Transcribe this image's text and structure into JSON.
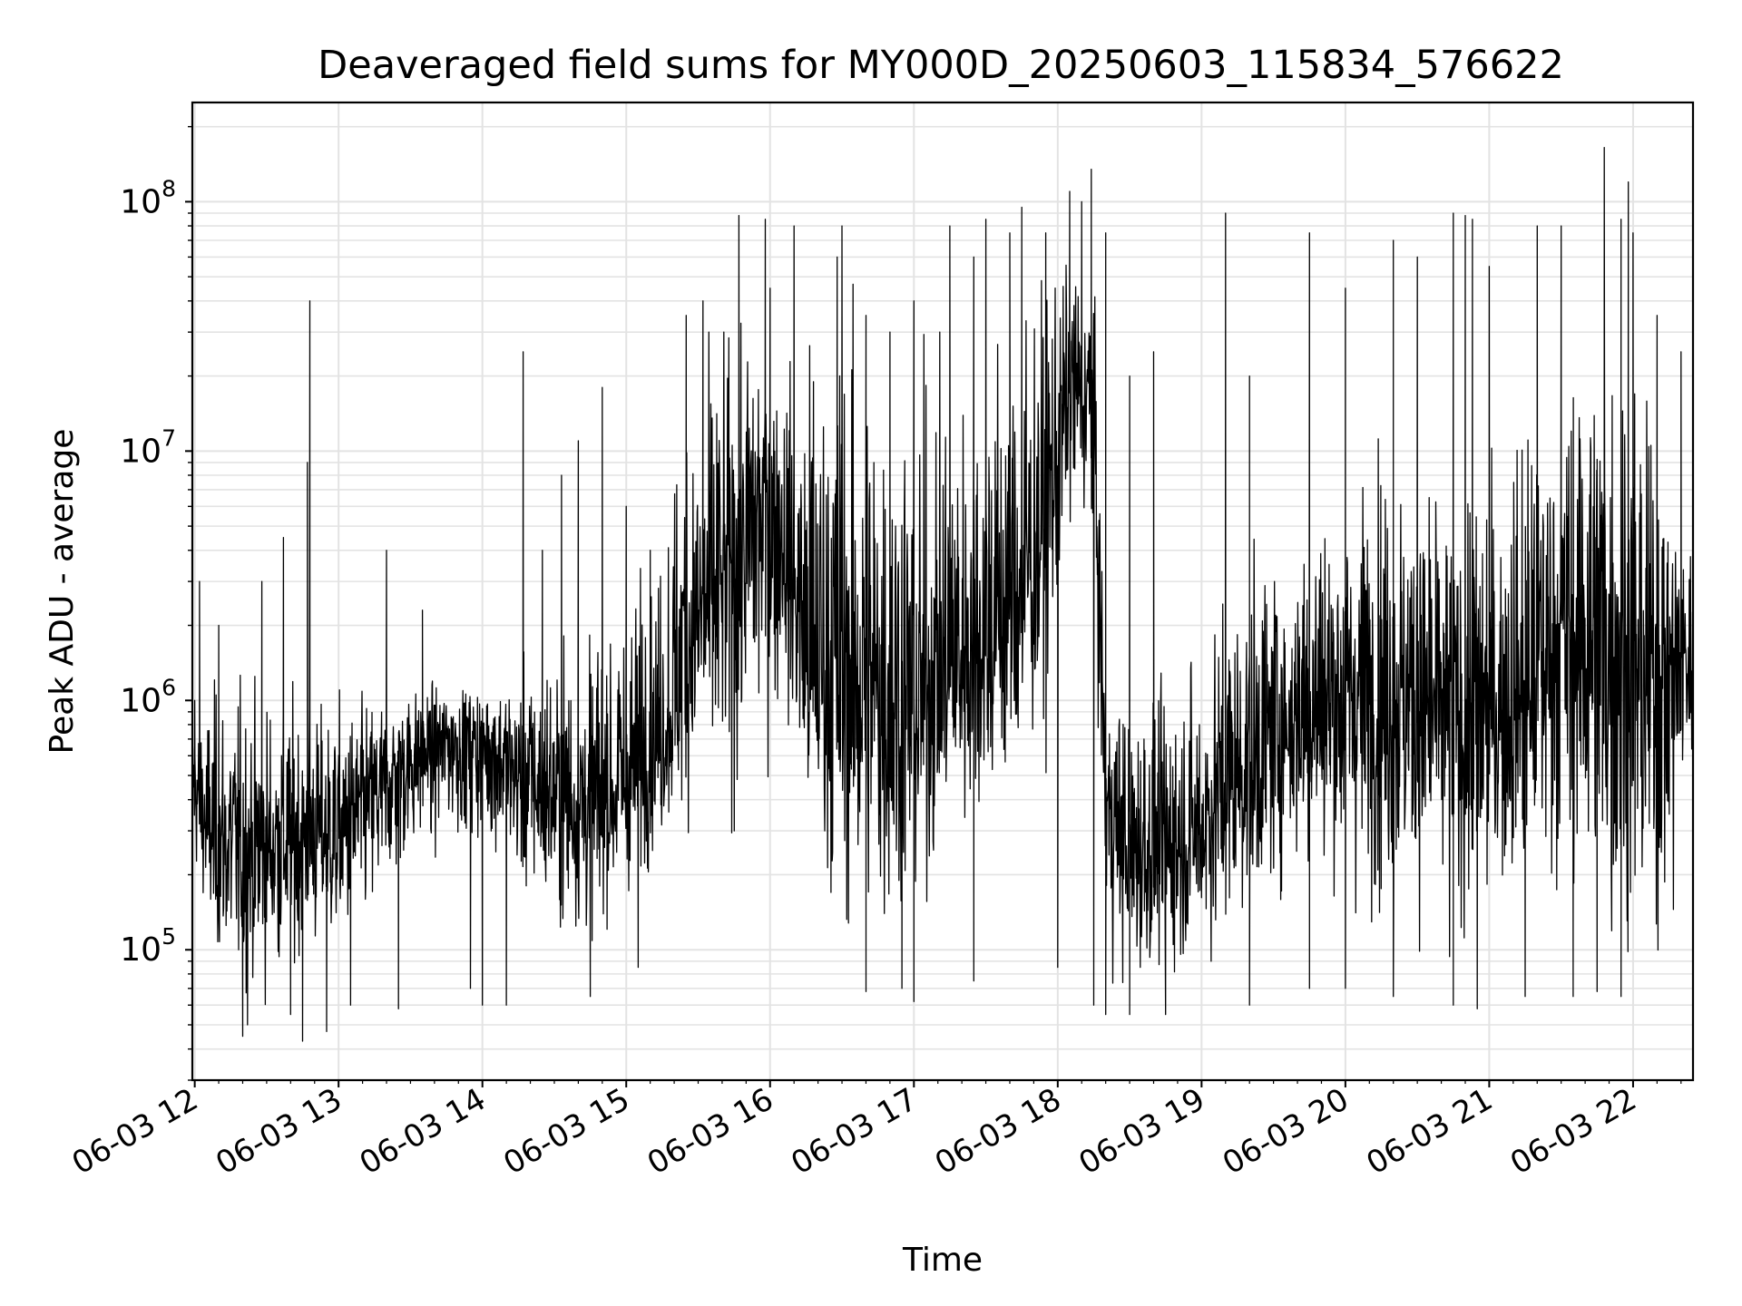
{
  "chart_data": {
    "type": "line",
    "title": "Deaveraged field sums for MY000D_20250603_115834_576622",
    "xlabel": "Time",
    "ylabel": "Peak ADU - average",
    "yscale": "log",
    "xlim": [
      "2025-06-03 11:59",
      "2025-06-03 22:25"
    ],
    "ylim": [
      30000,
      250000000
    ],
    "grid": true,
    "line_color": "#000000",
    "x_ticks": [
      "06-03 12",
      "06-03 13",
      "06-03 14",
      "06-03 15",
      "06-03 16",
      "06-03 17",
      "06-03 18",
      "06-03 19",
      "06-03 20",
      "06-03 21",
      "06-03 22"
    ],
    "y_ticks": [
      {
        "base": "10",
        "exp": "5"
      },
      {
        "base": "10",
        "exp": "6"
      },
      {
        "base": "10",
        "exp": "7"
      },
      {
        "base": "10",
        "exp": "8"
      }
    ],
    "series": [
      {
        "x": [
          "2025-06-03 11:59",
          "2025-06-03 12:00",
          "2025-06-03 12:05",
          "2025-06-03 12:10",
          "2025-06-03 12:20",
          "2025-06-03 12:30",
          "2025-06-03 12:40",
          "2025-06-03 12:50",
          "2025-06-03 13:00",
          "2025-06-03 13:15",
          "2025-06-03 13:30",
          "2025-06-03 13:45",
          "2025-06-03 14:00",
          "2025-06-03 14:15",
          "2025-06-03 14:30",
          "2025-06-03 14:45",
          "2025-06-03 15:00",
          "2025-06-03 15:15",
          "2025-06-03 15:25",
          "2025-06-03 15:35",
          "2025-06-03 15:45",
          "2025-06-03 15:55",
          "2025-06-03 16:05",
          "2025-06-03 16:15",
          "2025-06-03 16:30",
          "2025-06-03 16:45",
          "2025-06-03 17:00",
          "2025-06-03 17:15",
          "2025-06-03 17:30",
          "2025-06-03 17:45",
          "2025-06-03 17:55",
          "2025-06-03 18:05",
          "2025-06-03 18:15",
          "2025-06-03 18:20",
          "2025-06-03 18:30",
          "2025-06-03 18:45",
          "2025-06-03 19:00",
          "2025-06-03 19:15",
          "2025-06-03 19:30",
          "2025-06-03 19:45",
          "2025-06-03 20:00",
          "2025-06-03 20:15",
          "2025-06-03 20:30",
          "2025-06-03 20:45",
          "2025-06-03 21:00",
          "2025-06-03 21:15",
          "2025-06-03 21:30",
          "2025-06-03 21:45",
          "2025-06-03 22:00",
          "2025-06-03 22:15",
          "2025-06-03 22:25"
        ],
        "median": [
          500000,
          450000,
          300000,
          250000,
          250000,
          260000,
          280000,
          300000,
          300000,
          400000,
          600000,
          700000,
          700000,
          500000,
          400000,
          350000,
          450000,
          700000,
          1500000,
          2500000,
          3500000,
          6000000,
          5000000,
          1500000,
          1200000,
          1000000,
          800000,
          1300000,
          1800000,
          3000000,
          6000000,
          20000000,
          15000000,
          400000,
          250000,
          250000,
          300000,
          500000,
          700000,
          900000,
          1000000,
          1100000,
          1000000,
          800000,
          900000,
          1200000,
          1800000,
          2000000,
          1200000,
          1300000,
          1500000
        ],
        "low": [
          300000,
          200000,
          120000,
          80000,
          60000,
          60000,
          70000,
          80000,
          80000,
          120000,
          200000,
          250000,
          250000,
          150000,
          120000,
          100000,
          150000,
          250000,
          300000,
          250000,
          300000,
          300000,
          1000000,
          200000,
          100000,
          80000,
          120000,
          250000,
          250000,
          300000,
          500000,
          4000000,
          3000000,
          80000,
          60000,
          70000,
          80000,
          100000,
          150000,
          200000,
          150000,
          120000,
          100000,
          80000,
          100000,
          120000,
          150000,
          80000,
          70000,
          80000,
          400000
        ],
        "high": [
          1000000,
          900000,
          1200000,
          1400000,
          1300000,
          1200000,
          1200000,
          1100000,
          1100000,
          1200000,
          1200000,
          1200000,
          1200000,
          1500000,
          2000000,
          2500000,
          3500000,
          5000000,
          30000000,
          30000000,
          30000000,
          40000000,
          20000000,
          50000000,
          50000000,
          40000000,
          30000000,
          30000000,
          40000000,
          45000000,
          50000000,
          60000000,
          60000000,
          1200000,
          1300000,
          1300000,
          2000000,
          4000000,
          5000000,
          8000000,
          10000000,
          12000000,
          10000000,
          8000000,
          10000000,
          15000000,
          25000000,
          40000000,
          30000000,
          10000000,
          5000000
        ],
        "spikes": [
          [
            "2025-06-03 12:00",
            1000000
          ],
          [
            "2025-06-03 12:02",
            3000000
          ],
          [
            "2025-06-03 12:10",
            2000000
          ],
          [
            "2025-06-03 12:28",
            3000000
          ],
          [
            "2025-06-03 12:37",
            4500000
          ],
          [
            "2025-06-03 12:47",
            9000000
          ],
          [
            "2025-06-03 12:48",
            40000000
          ],
          [
            "2025-06-03 13:20",
            4000000
          ],
          [
            "2025-06-03 13:35",
            2300000
          ],
          [
            "2025-06-03 14:17",
            25000000
          ],
          [
            "2025-06-03 14:25",
            4000000
          ],
          [
            "2025-06-03 14:33",
            8000000
          ],
          [
            "2025-06-03 14:40",
            11000000
          ],
          [
            "2025-06-03 14:50",
            18000000
          ],
          [
            "2025-06-03 15:00",
            6000000
          ],
          [
            "2025-06-03 15:10",
            4000000
          ],
          [
            "2025-06-03 15:25",
            35000000
          ],
          [
            "2025-06-03 15:32",
            40000000
          ],
          [
            "2025-06-03 15:47",
            88000000
          ],
          [
            "2025-06-03 15:58",
            85000000
          ],
          [
            "2025-06-03 16:00",
            45000000
          ],
          [
            "2025-06-03 16:10",
            80000000
          ],
          [
            "2025-06-03 16:28",
            60000000
          ],
          [
            "2025-06-03 16:30",
            80000000
          ],
          [
            "2025-06-03 16:40",
            35000000
          ],
          [
            "2025-06-03 16:50",
            30000000
          ],
          [
            "2025-06-03 17:00",
            40000000
          ],
          [
            "2025-06-03 17:15",
            80000000
          ],
          [
            "2025-06-03 17:25",
            60000000
          ],
          [
            "2025-06-03 17:30",
            85000000
          ],
          [
            "2025-06-03 17:40",
            75000000
          ],
          [
            "2025-06-03 17:45",
            95000000
          ],
          [
            "2025-06-03 17:55",
            75000000
          ],
          [
            "2025-06-03 18:05",
            110000000
          ],
          [
            "2025-06-03 18:10",
            100000000
          ],
          [
            "2025-06-03 18:14",
            135000000
          ],
          [
            "2025-06-03 18:20",
            75000000
          ],
          [
            "2025-06-03 18:30",
            20000000
          ],
          [
            "2025-06-03 18:40",
            25000000
          ],
          [
            "2025-06-03 19:10",
            90000000
          ],
          [
            "2025-06-03 19:20",
            20000000
          ],
          [
            "2025-06-03 19:45",
            75000000
          ],
          [
            "2025-06-03 20:00",
            45000000
          ],
          [
            "2025-06-03 20:20",
            70000000
          ],
          [
            "2025-06-03 20:30",
            60000000
          ],
          [
            "2025-06-03 20:45",
            90000000
          ],
          [
            "2025-06-03 20:50",
            88000000
          ],
          [
            "2025-06-03 20:53",
            85000000
          ],
          [
            "2025-06-03 21:00",
            55000000
          ],
          [
            "2025-06-03 21:20",
            80000000
          ],
          [
            "2025-06-03 21:30",
            80000000
          ],
          [
            "2025-06-03 21:48",
            165000000
          ],
          [
            "2025-06-03 21:55",
            85000000
          ],
          [
            "2025-06-03 21:58",
            120000000
          ],
          [
            "2025-06-03 22:00",
            75000000
          ],
          [
            "2025-06-03 22:10",
            35000000
          ],
          [
            "2025-06-03 22:20",
            25000000
          ]
        ],
        "dips": [
          [
            "2025-06-03 12:20",
            45000
          ],
          [
            "2025-06-03 12:22",
            50000
          ],
          [
            "2025-06-03 12:40",
            55000
          ],
          [
            "2025-06-03 12:45",
            43000
          ],
          [
            "2025-06-03 12:55",
            47000
          ],
          [
            "2025-06-03 13:05",
            60000
          ],
          [
            "2025-06-03 13:25",
            58000
          ],
          [
            "2025-06-03 13:55",
            70000
          ],
          [
            "2025-06-03 14:00",
            60000
          ],
          [
            "2025-06-03 14:10",
            60000
          ],
          [
            "2025-06-03 14:45",
            65000
          ],
          [
            "2025-06-03 15:05",
            85000
          ],
          [
            "2025-06-03 16:40",
            68000
          ],
          [
            "2025-06-03 16:55",
            70000
          ],
          [
            "2025-06-03 17:00",
            62000
          ],
          [
            "2025-06-03 17:25",
            75000
          ],
          [
            "2025-06-03 18:00",
            85000
          ],
          [
            "2025-06-03 18:15",
            60000
          ],
          [
            "2025-06-03 18:20",
            55000
          ],
          [
            "2025-06-03 18:30",
            55000
          ],
          [
            "2025-06-03 18:45",
            55000
          ],
          [
            "2025-06-03 19:20",
            60000
          ],
          [
            "2025-06-03 19:45",
            70000
          ],
          [
            "2025-06-03 20:00",
            70000
          ],
          [
            "2025-06-03 20:20",
            65000
          ],
          [
            "2025-06-03 20:45",
            60000
          ],
          [
            "2025-06-03 20:55",
            58000
          ],
          [
            "2025-06-03 21:15",
            65000
          ],
          [
            "2025-06-03 21:35",
            65000
          ],
          [
            "2025-06-03 21:45",
            68000
          ],
          [
            "2025-06-03 21:55",
            65000
          ]
        ]
      }
    ]
  }
}
